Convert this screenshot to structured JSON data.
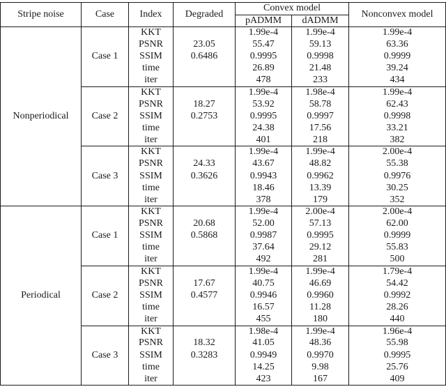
{
  "table": {
    "headers": {
      "stripe_noise": "Stripe noise",
      "case": "Case",
      "index": "Index",
      "degraded": "Degraded",
      "convex_model": "Convex model",
      "padmm": "pADMM",
      "dadmm": "dADMM",
      "nonconvex_model": "Nonconvex model"
    },
    "index_labels": [
      "KKT",
      "PSNR",
      "SSIM",
      "time",
      "iter"
    ],
    "sections": [
      {
        "stripe_noise": "Nonperiodical",
        "cases": [
          {
            "case": "Case 1",
            "degraded": [
              "",
              "23.05",
              "0.6486",
              "",
              ""
            ],
            "padmm": [
              "1.99e-4",
              "55.47",
              "0.9995",
              "26.89",
              "478"
            ],
            "dadmm": [
              "1.99e-4",
              "59.13",
              "0.9998",
              "21.48",
              "233"
            ],
            "nonconvex": [
              "1.99e-4",
              "63.36",
              "0.9999",
              "39.24",
              "434"
            ]
          },
          {
            "case": "Case 2",
            "degraded": [
              "",
              "18.27",
              "0.2753",
              "",
              ""
            ],
            "padmm": [
              "1.99e-4",
              "53.92",
              "0.9995",
              "24.38",
              "401"
            ],
            "dadmm": [
              "1.98e-4",
              "58.78",
              "0.9997",
              "17.56",
              "218"
            ],
            "nonconvex": [
              "1.99e-4",
              "62.43",
              "0.9998",
              "33.21",
              "382"
            ]
          },
          {
            "case": "Case 3",
            "degraded": [
              "",
              "24.33",
              "0.3626",
              "",
              ""
            ],
            "padmm": [
              "1.99e-4",
              "43.67",
              "0.9943",
              "18.46",
              "378"
            ],
            "dadmm": [
              "1.99e-4",
              "48.82",
              "0.9962",
              "13.39",
              "179"
            ],
            "nonconvex": [
              "2.00e-4",
              "55.38",
              "0.9976",
              "30.25",
              "352"
            ]
          }
        ]
      },
      {
        "stripe_noise": "Periodical",
        "cases": [
          {
            "case": "Case 1",
            "degraded": [
              "",
              "20.68",
              "0.5868",
              "",
              ""
            ],
            "padmm": [
              "1.99e-4",
              "52.00",
              "0.9987",
              "37.64",
              "492"
            ],
            "dadmm": [
              "2.00e-4",
              "57.13",
              "0.9995",
              "29.12",
              "281"
            ],
            "nonconvex": [
              "2.00e-4",
              "62.00",
              "0.9999",
              "55.83",
              "500"
            ]
          },
          {
            "case": "Case 2",
            "degraded": [
              "",
              "17.67",
              "0.4577",
              "",
              ""
            ],
            "padmm": [
              "1.99e-4",
              "40.75",
              "0.9946",
              "16.57",
              "455"
            ],
            "dadmm": [
              "1.99e-4",
              "46.69",
              "0.9960",
              "11.28",
              "180"
            ],
            "nonconvex": [
              "1.79e-4",
              "54.42",
              "0.9992",
              "28.26",
              "440"
            ]
          },
          {
            "case": "Case 3",
            "degraded": [
              "",
              "18.32",
              "0.3283",
              "",
              ""
            ],
            "padmm": [
              "1.98e-4",
              "41.05",
              "0.9949",
              "14.25",
              "423"
            ],
            "dadmm": [
              "1.99e-4",
              "48.36",
              "0.9970",
              "9.98",
              "167"
            ],
            "nonconvex": [
              "1.96e-4",
              "55.98",
              "0.9995",
              "25.76",
              "409"
            ]
          }
        ]
      }
    ]
  }
}
